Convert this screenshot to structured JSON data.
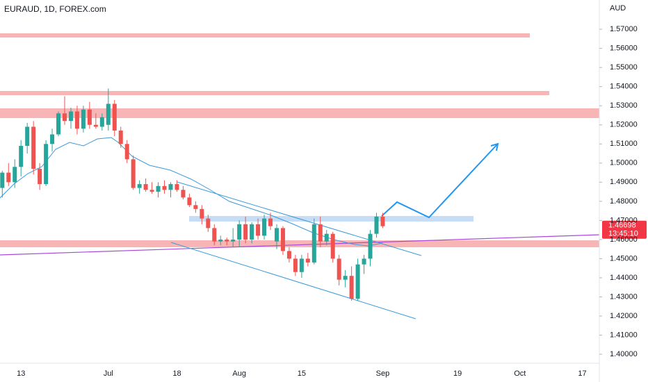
{
  "chart_data": {
    "type": "candlestick",
    "title": "EURAUD, 1D, FOREX.com",
    "y_axis_label": "AUD",
    "countdown": "13:45:10",
    "categories": [
      null,
      null,
      null,
      "13",
      null,
      null,
      null,
      null,
      null,
      null,
      null,
      null,
      null,
      null,
      null,
      null,
      null,
      "Jul",
      null,
      null,
      null,
      null,
      null,
      null,
      null,
      null,
      null,
      null,
      "18",
      null,
      null,
      null,
      null,
      null,
      null,
      null,
      null,
      null,
      "Aug",
      null,
      null,
      null,
      null,
      null,
      null,
      null,
      null,
      null,
      "15",
      null,
      null,
      null,
      null,
      null,
      null,
      null,
      null,
      null,
      null,
      null,
      null,
      "Sep",
      null,
      null,
      null,
      null,
      null,
      null,
      null,
      null,
      null,
      null,
      null,
      "19",
      null,
      null,
      null,
      null,
      null,
      null,
      null,
      null,
      null,
      "Oct",
      null,
      null,
      null,
      null,
      null,
      null,
      null,
      null,
      null,
      "17"
    ],
    "open": [
      1.487,
      1.495,
      1.49,
      1.498,
      1.509,
      1.519,
      1.497,
      1.489,
      1.51,
      1.515,
      1.526,
      1.522,
      1.527,
      1.518,
      1.528,
      1.52,
      1.519,
      1.52,
      1.531,
      1.517,
      1.51,
      1.502,
      1.487,
      1.489,
      1.486,
      1.485,
      1.488,
      1.486,
      1.489,
      1.486,
      1.482,
      1.478,
      1.476,
      1.471,
      1.466,
      1.459,
      1.46,
      1.459,
      1.46,
      1.468,
      1.46,
      1.468,
      1.462,
      1.471,
      1.459,
      1.466,
      1.454,
      1.45,
      1.443,
      1.45,
      1.448,
      1.468,
      1.459,
      1.463,
      1.45,
      1.439,
      1.441,
      1.429,
      1.447,
      1.45,
      1.463,
      1.472,
      null,
      null,
      null,
      null,
      null,
      null,
      null,
      null,
      null,
      null,
      null,
      null,
      null,
      null,
      null,
      null,
      null,
      null,
      null,
      null,
      null,
      null,
      null,
      null,
      null,
      null,
      null,
      null,
      null,
      null,
      null,
      null
    ],
    "high": [
      1.496,
      1.5,
      1.502,
      1.512,
      1.521,
      1.522,
      1.5,
      1.512,
      1.518,
      1.527,
      1.535,
      1.529,
      1.53,
      1.53,
      1.532,
      1.526,
      1.526,
      1.539,
      1.533,
      1.519,
      1.512,
      1.504,
      1.491,
      1.492,
      1.49,
      1.49,
      1.491,
      1.49,
      1.491,
      1.488,
      1.484,
      1.48,
      1.478,
      1.473,
      1.468,
      1.462,
      1.461,
      1.466,
      1.47,
      1.472,
      1.469,
      1.471,
      1.473,
      1.474,
      1.468,
      1.467,
      1.456,
      1.452,
      1.452,
      1.453,
      1.471,
      1.472,
      1.465,
      1.464,
      1.452,
      1.444,
      1.446,
      1.45,
      1.452,
      1.465,
      1.474,
      1.474,
      null,
      null,
      null,
      null,
      null,
      null,
      null,
      null,
      null,
      null,
      null,
      null,
      null,
      null,
      null,
      null,
      null,
      null,
      null,
      null,
      null,
      null,
      null,
      null,
      null,
      null,
      null,
      null,
      null,
      null,
      null,
      null
    ],
    "low": [
      1.482,
      1.488,
      1.487,
      1.493,
      1.505,
      1.494,
      1.486,
      1.488,
      1.506,
      1.514,
      1.52,
      1.518,
      1.515,
      1.516,
      1.518,
      1.518,
      1.517,
      1.517,
      1.514,
      1.508,
      1.5,
      1.486,
      1.484,
      1.485,
      1.484,
      1.482,
      1.484,
      1.482,
      1.485,
      1.481,
      1.477,
      1.474,
      1.468,
      1.464,
      1.457,
      1.457,
      1.457,
      1.456,
      1.456,
      1.458,
      1.458,
      1.46,
      1.46,
      1.465,
      1.455,
      1.452,
      1.448,
      1.441,
      1.44,
      1.446,
      1.447,
      1.456,
      1.457,
      1.448,
      1.436,
      1.435,
      1.428,
      1.428,
      1.442,
      1.446,
      1.461,
      1.466,
      null,
      null,
      null,
      null,
      null,
      null,
      null,
      null,
      null,
      null,
      null,
      null,
      null,
      null,
      null,
      null,
      null,
      null,
      null,
      null,
      null,
      null,
      null,
      null,
      null,
      null,
      null,
      null,
      null,
      null,
      null,
      null
    ],
    "close": [
      1.495,
      1.49,
      1.498,
      1.509,
      1.519,
      1.497,
      1.489,
      1.51,
      1.515,
      1.526,
      1.522,
      1.527,
      1.518,
      1.528,
      1.52,
      1.519,
      1.524,
      1.531,
      1.517,
      1.51,
      1.502,
      1.487,
      1.489,
      1.486,
      1.485,
      1.488,
      1.486,
      1.489,
      1.486,
      1.482,
      1.478,
      1.476,
      1.471,
      1.466,
      1.459,
      1.46,
      1.459,
      1.46,
      1.468,
      1.46,
      1.468,
      1.462,
      1.471,
      1.467,
      1.466,
      1.454,
      1.45,
      1.443,
      1.45,
      1.448,
      1.468,
      1.459,
      1.463,
      1.45,
      1.439,
      1.441,
      1.429,
      1.447,
      1.45,
      1.463,
      1.472,
      1.46698,
      null,
      null,
      null,
      null,
      null,
      null,
      null,
      null,
      null,
      null,
      null,
      null,
      null,
      null,
      null,
      null,
      null,
      null,
      null,
      null,
      null,
      null,
      null,
      null,
      null,
      null,
      null,
      null,
      null,
      null,
      null,
      null
    ],
    "up_color": "#26a69a",
    "down_color": "#ef5350",
    "ylim": [
      1.3953,
      1.5853
    ],
    "yticks": [
      {
        "value": 1.4,
        "label": "1.40000"
      },
      {
        "value": 1.41,
        "label": "1.41000"
      },
      {
        "value": 1.42,
        "label": "1.42000"
      },
      {
        "value": 1.43,
        "label": "1.43000"
      },
      {
        "value": 1.44,
        "label": "1.44000"
      },
      {
        "value": 1.45,
        "label": "1.45000"
      },
      {
        "value": 1.46,
        "label": "1.46000"
      },
      {
        "value": 1.47,
        "label": "1.47000"
      },
      {
        "value": 1.48,
        "label": "1.48000"
      },
      {
        "value": 1.49,
        "label": "1.49000"
      },
      {
        "value": 1.5,
        "label": "1.50000"
      },
      {
        "value": 1.51,
        "label": "1.51000"
      },
      {
        "value": 1.52,
        "label": "1.52000"
      },
      {
        "value": 1.53,
        "label": "1.53000"
      },
      {
        "value": 1.54,
        "label": "1.54000"
      },
      {
        "value": 1.55,
        "label": "1.55000"
      },
      {
        "value": 1.56,
        "label": "1.56000"
      },
      {
        "value": 1.57,
        "label": "1.57000"
      }
    ]
  }
}
